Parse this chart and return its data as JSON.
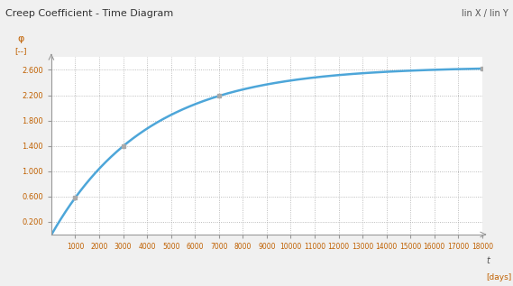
{
  "title": "Creep Coefficient - Time Diagram",
  "top_right_label": "lin X / lin Y",
  "xlabel": "t",
  "xlabel_unit": "[days]",
  "ylabel": "φ",
  "ylabel_unit": "[--]",
  "background_color": "#f0f0f0",
  "plot_bg_color": "#ffffff",
  "line_color": "#4da6d9",
  "line_width": 1.8,
  "x_min": 0,
  "x_max": 18000,
  "y_min": 0,
  "y_max": 2.8,
  "x_ticks": [
    1000,
    2000,
    3000,
    4000,
    5000,
    6000,
    7000,
    8000,
    9000,
    10000,
    11000,
    12000,
    13000,
    14000,
    15000,
    16000,
    17000,
    18000
  ],
  "y_ticks": [
    0.2,
    0.6,
    1.0,
    1.4,
    1.8,
    2.2,
    2.6
  ],
  "creep_phi_inf": 2.65,
  "creep_t0": 10,
  "creep_beta": 0.00025
}
